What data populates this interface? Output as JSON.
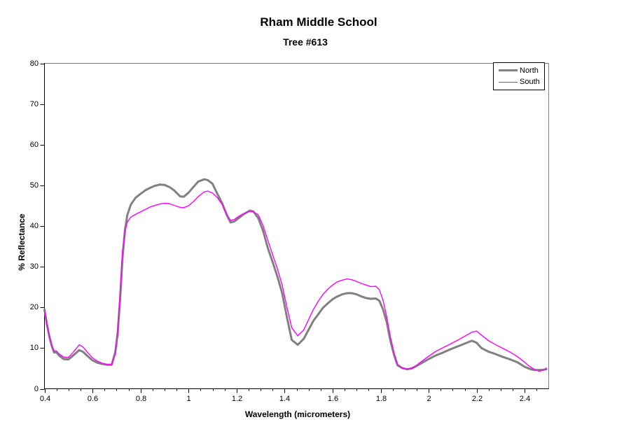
{
  "page": {
    "background": "#FFFFFF"
  },
  "chart_data": {
    "type": "line",
    "title": "Rham Middle School",
    "subtitle": "Tree #613",
    "xlabel": "Wavelength (micrometers)",
    "ylabel": "% Reflectance",
    "xlim": [
      0.4,
      2.5
    ],
    "ylim": [
      0,
      80
    ],
    "x_major_tick_interval": 0.2,
    "x_minor_tick_interval": 0.05,
    "y_tick_interval": 10,
    "x_tick_labels": [
      "0.4",
      "0.6",
      "0.8",
      "1",
      "1.2",
      "1.4",
      "1.6",
      "1.8",
      "2",
      "2.2",
      "2.4"
    ],
    "y_tick_labels": [
      "0",
      "10",
      "20",
      "30",
      "40",
      "50",
      "60",
      "70",
      "80"
    ],
    "grid": false,
    "legend_position": "top-right",
    "plot_border_color": "#808080",
    "axis_color": "#000000",
    "background_color": "#FFFFFF",
    "x": [
      0.4,
      0.41,
      0.42,
      0.43,
      0.44,
      0.45,
      0.46,
      0.48,
      0.5,
      0.52,
      0.545,
      0.56,
      0.58,
      0.6,
      0.62,
      0.64,
      0.66,
      0.68,
      0.695,
      0.705,
      0.715,
      0.725,
      0.735,
      0.745,
      0.76,
      0.78,
      0.8,
      0.82,
      0.84,
      0.86,
      0.88,
      0.9,
      0.92,
      0.94,
      0.965,
      0.98,
      1.0,
      1.02,
      1.04,
      1.065,
      1.08,
      1.1,
      1.12,
      1.14,
      1.16,
      1.175,
      1.19,
      1.21,
      1.23,
      1.255,
      1.27,
      1.29,
      1.31,
      1.33,
      1.35,
      1.37,
      1.39,
      1.41,
      1.43,
      1.455,
      1.48,
      1.5,
      1.52,
      1.54,
      1.56,
      1.58,
      1.6,
      1.62,
      1.64,
      1.66,
      1.68,
      1.7,
      1.72,
      1.74,
      1.76,
      1.78,
      1.795,
      1.81,
      1.825,
      1.84,
      1.855,
      1.87,
      1.89,
      1.91,
      1.93,
      1.95,
      1.97,
      2.0,
      2.03,
      2.06,
      2.09,
      2.12,
      2.15,
      2.18,
      2.2,
      2.22,
      2.25,
      2.28,
      2.31,
      2.34,
      2.37,
      2.4,
      2.42,
      2.44,
      2.46,
      2.48,
      2.49
    ],
    "series": [
      {
        "name": "North",
        "color": "#808080",
        "line_width": 3,
        "values": [
          19.5,
          16.0,
          12.9,
          10.6,
          8.9,
          9.0,
          8.2,
          7.3,
          7.2,
          8.2,
          9.5,
          9.1,
          8.0,
          7.0,
          6.4,
          6.1,
          5.9,
          5.9,
          9.0,
          14.0,
          22.0,
          32.0,
          39.0,
          42.7,
          45.3,
          47.0,
          47.9,
          48.8,
          49.4,
          49.9,
          50.2,
          50.1,
          49.6,
          48.8,
          47.3,
          47.2,
          48.2,
          49.6,
          50.9,
          51.5,
          51.3,
          50.4,
          47.9,
          45.6,
          42.6,
          40.9,
          41.1,
          42.0,
          42.9,
          43.8,
          43.6,
          42.0,
          38.9,
          34.6,
          31.2,
          27.6,
          23.5,
          17.5,
          12.0,
          10.8,
          12.3,
          14.5,
          16.7,
          18.3,
          19.9,
          21.0,
          22.0,
          22.7,
          23.2,
          23.5,
          23.5,
          23.2,
          22.7,
          22.3,
          22.1,
          22.2,
          21.6,
          19.5,
          16.5,
          12.0,
          8.5,
          5.8,
          5.1,
          4.8,
          5.0,
          5.6,
          6.3,
          7.3,
          8.2,
          8.9,
          9.7,
          10.4,
          11.1,
          11.8,
          11.3,
          10.0,
          9.1,
          8.5,
          7.8,
          7.2,
          6.5,
          5.4,
          4.9,
          4.6,
          4.6,
          4.7,
          4.8
        ]
      },
      {
        "name": "South",
        "color": "#FF00FF",
        "line_width": 1.4,
        "values": [
          19.3,
          15.8,
          12.9,
          10.8,
          9.3,
          9.3,
          8.6,
          7.8,
          7.7,
          9.0,
          10.8,
          10.3,
          8.9,
          7.6,
          6.8,
          6.3,
          6.0,
          6.0,
          8.5,
          13.0,
          24.0,
          34.0,
          38.5,
          41.0,
          42.2,
          42.9,
          43.5,
          44.1,
          44.7,
          45.1,
          45.4,
          45.6,
          45.5,
          45.1,
          44.6,
          44.5,
          45.0,
          46.0,
          47.2,
          48.4,
          48.6,
          48.1,
          47.0,
          45.3,
          42.8,
          41.4,
          41.6,
          42.4,
          43.1,
          43.6,
          43.5,
          42.8,
          40.2,
          36.5,
          33.0,
          29.5,
          25.5,
          20.0,
          15.0,
          13.0,
          14.5,
          17.0,
          19.5,
          21.5,
          23.2,
          24.5,
          25.5,
          26.3,
          26.7,
          27.0,
          26.8,
          26.4,
          25.9,
          25.5,
          25.1,
          25.2,
          24.3,
          21.8,
          17.8,
          13.0,
          9.0,
          6.0,
          5.1,
          4.8,
          5.1,
          5.8,
          6.7,
          8.0,
          9.2,
          10.1,
          11.0,
          11.9,
          12.9,
          13.9,
          14.2,
          13.2,
          11.8,
          10.8,
          9.9,
          9.0,
          7.9,
          6.5,
          5.5,
          4.8,
          4.3,
          4.6,
          5.1
        ]
      }
    ]
  }
}
